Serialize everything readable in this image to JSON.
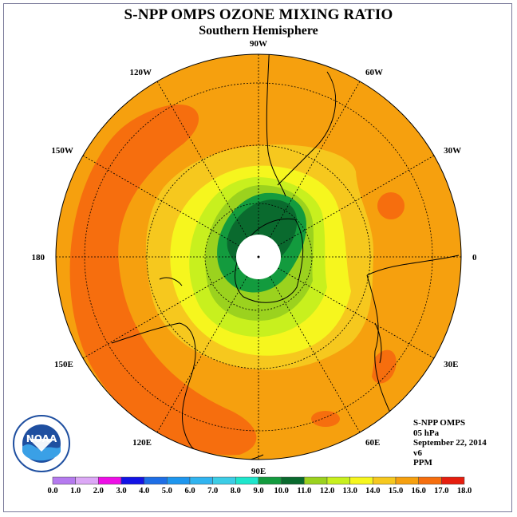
{
  "header": {
    "title": "S-NPP OMPS OZONE MIXING RATIO",
    "subtitle": "Southern Hemisphere"
  },
  "map": {
    "projection": "south-polar-stereographic",
    "meridian_labels": [
      {
        "lon": -90,
        "text": "90W"
      },
      {
        "lon": -60,
        "text": "60W"
      },
      {
        "lon": -30,
        "text": "30W"
      },
      {
        "lon": 0,
        "text": "0"
      },
      {
        "lon": 30,
        "text": "30E"
      },
      {
        "lon": 60,
        "text": "60E"
      },
      {
        "lon": 90,
        "text": "90E"
      },
      {
        "lon": 120,
        "text": "120E"
      },
      {
        "lon": 150,
        "text": "150E"
      },
      {
        "lon": 180,
        "text": "180"
      },
      {
        "lon": -150,
        "text": "150W"
      },
      {
        "lon": -120,
        "text": "120W"
      }
    ]
  },
  "info": {
    "instrument": "S-NPP OMPS",
    "level": "05 hPa",
    "date": "September 22, 2014",
    "version": "v6",
    "units": "PPM"
  },
  "colorbar": {
    "tick_labels": [
      "0.0",
      "1.0",
      "2.0",
      "3.0",
      "4.0",
      "5.0",
      "6.0",
      "7.0",
      "8.0",
      "9.0",
      "10.0",
      "11.0",
      "12.0",
      "13.0",
      "14.0",
      "15.0",
      "16.0",
      "17.0",
      "18.0"
    ],
    "colors": [
      "#b57aef",
      "#dca8f6",
      "#ee0ee6",
      "#1313e6",
      "#1e6ee6",
      "#1e96ee",
      "#30b4f0",
      "#3ccde6",
      "#1ee6cc",
      "#139b3e",
      "#0a6a2e",
      "#9bd21e",
      "#c8f01e",
      "#f6f61e",
      "#f6c81e",
      "#f6a00e",
      "#f66e0e",
      "#e61e0e",
      "#8c5a3a"
    ]
  },
  "logo": {
    "text": "NOAA"
  }
}
